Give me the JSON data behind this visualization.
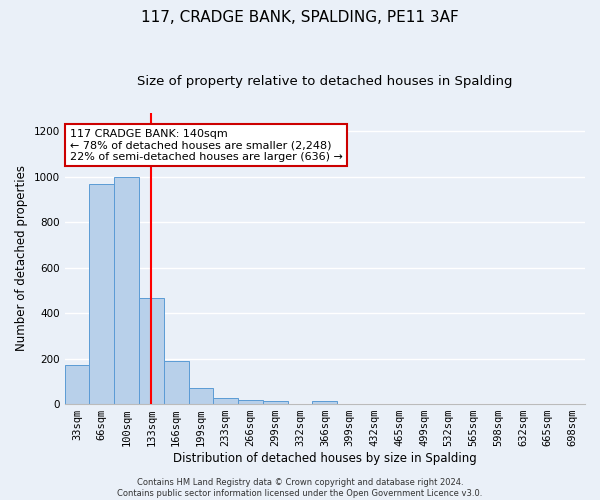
{
  "title": "117, CRADGE BANK, SPALDING, PE11 3AF",
  "subtitle": "Size of property relative to detached houses in Spalding",
  "xlabel": "Distribution of detached houses by size in Spalding",
  "ylabel": "Number of detached properties",
  "categories": [
    "33sqm",
    "66sqm",
    "100sqm",
    "133sqm",
    "166sqm",
    "199sqm",
    "233sqm",
    "266sqm",
    "299sqm",
    "332sqm",
    "366sqm",
    "399sqm",
    "432sqm",
    "465sqm",
    "499sqm",
    "532sqm",
    "565sqm",
    "598sqm",
    "632sqm",
    "665sqm",
    "698sqm"
  ],
  "bar_heights": [
    172,
    965,
    1000,
    465,
    188,
    72,
    25,
    18,
    12,
    0,
    15,
    0,
    0,
    0,
    0,
    0,
    0,
    0,
    0,
    0,
    0
  ],
  "bar_color": "#b8d0ea",
  "bar_edge_color": "#5b9bd5",
  "red_line_x": 3.0,
  "annotation_line1": "117 CRADGE BANK: 140sqm",
  "annotation_line2": "← 78% of detached houses are smaller (2,248)",
  "annotation_line3": "22% of semi-detached houses are larger (636) →",
  "annotation_box_color": "#ffffff",
  "annotation_box_edge_color": "#cc0000",
  "footer_text": "Contains HM Land Registry data © Crown copyright and database right 2024.\nContains public sector information licensed under the Open Government Licence v3.0.",
  "ylim": [
    0,
    1280
  ],
  "yticks": [
    0,
    200,
    400,
    600,
    800,
    1000,
    1200
  ],
  "bg_color": "#eaf0f8",
  "grid_color": "#ffffff",
  "title_fontsize": 11,
  "subtitle_fontsize": 9.5,
  "xlabel_fontsize": 8.5,
  "ylabel_fontsize": 8.5,
  "tick_fontsize": 7.5,
  "annotation_fontsize": 8,
  "footer_fontsize": 6
}
